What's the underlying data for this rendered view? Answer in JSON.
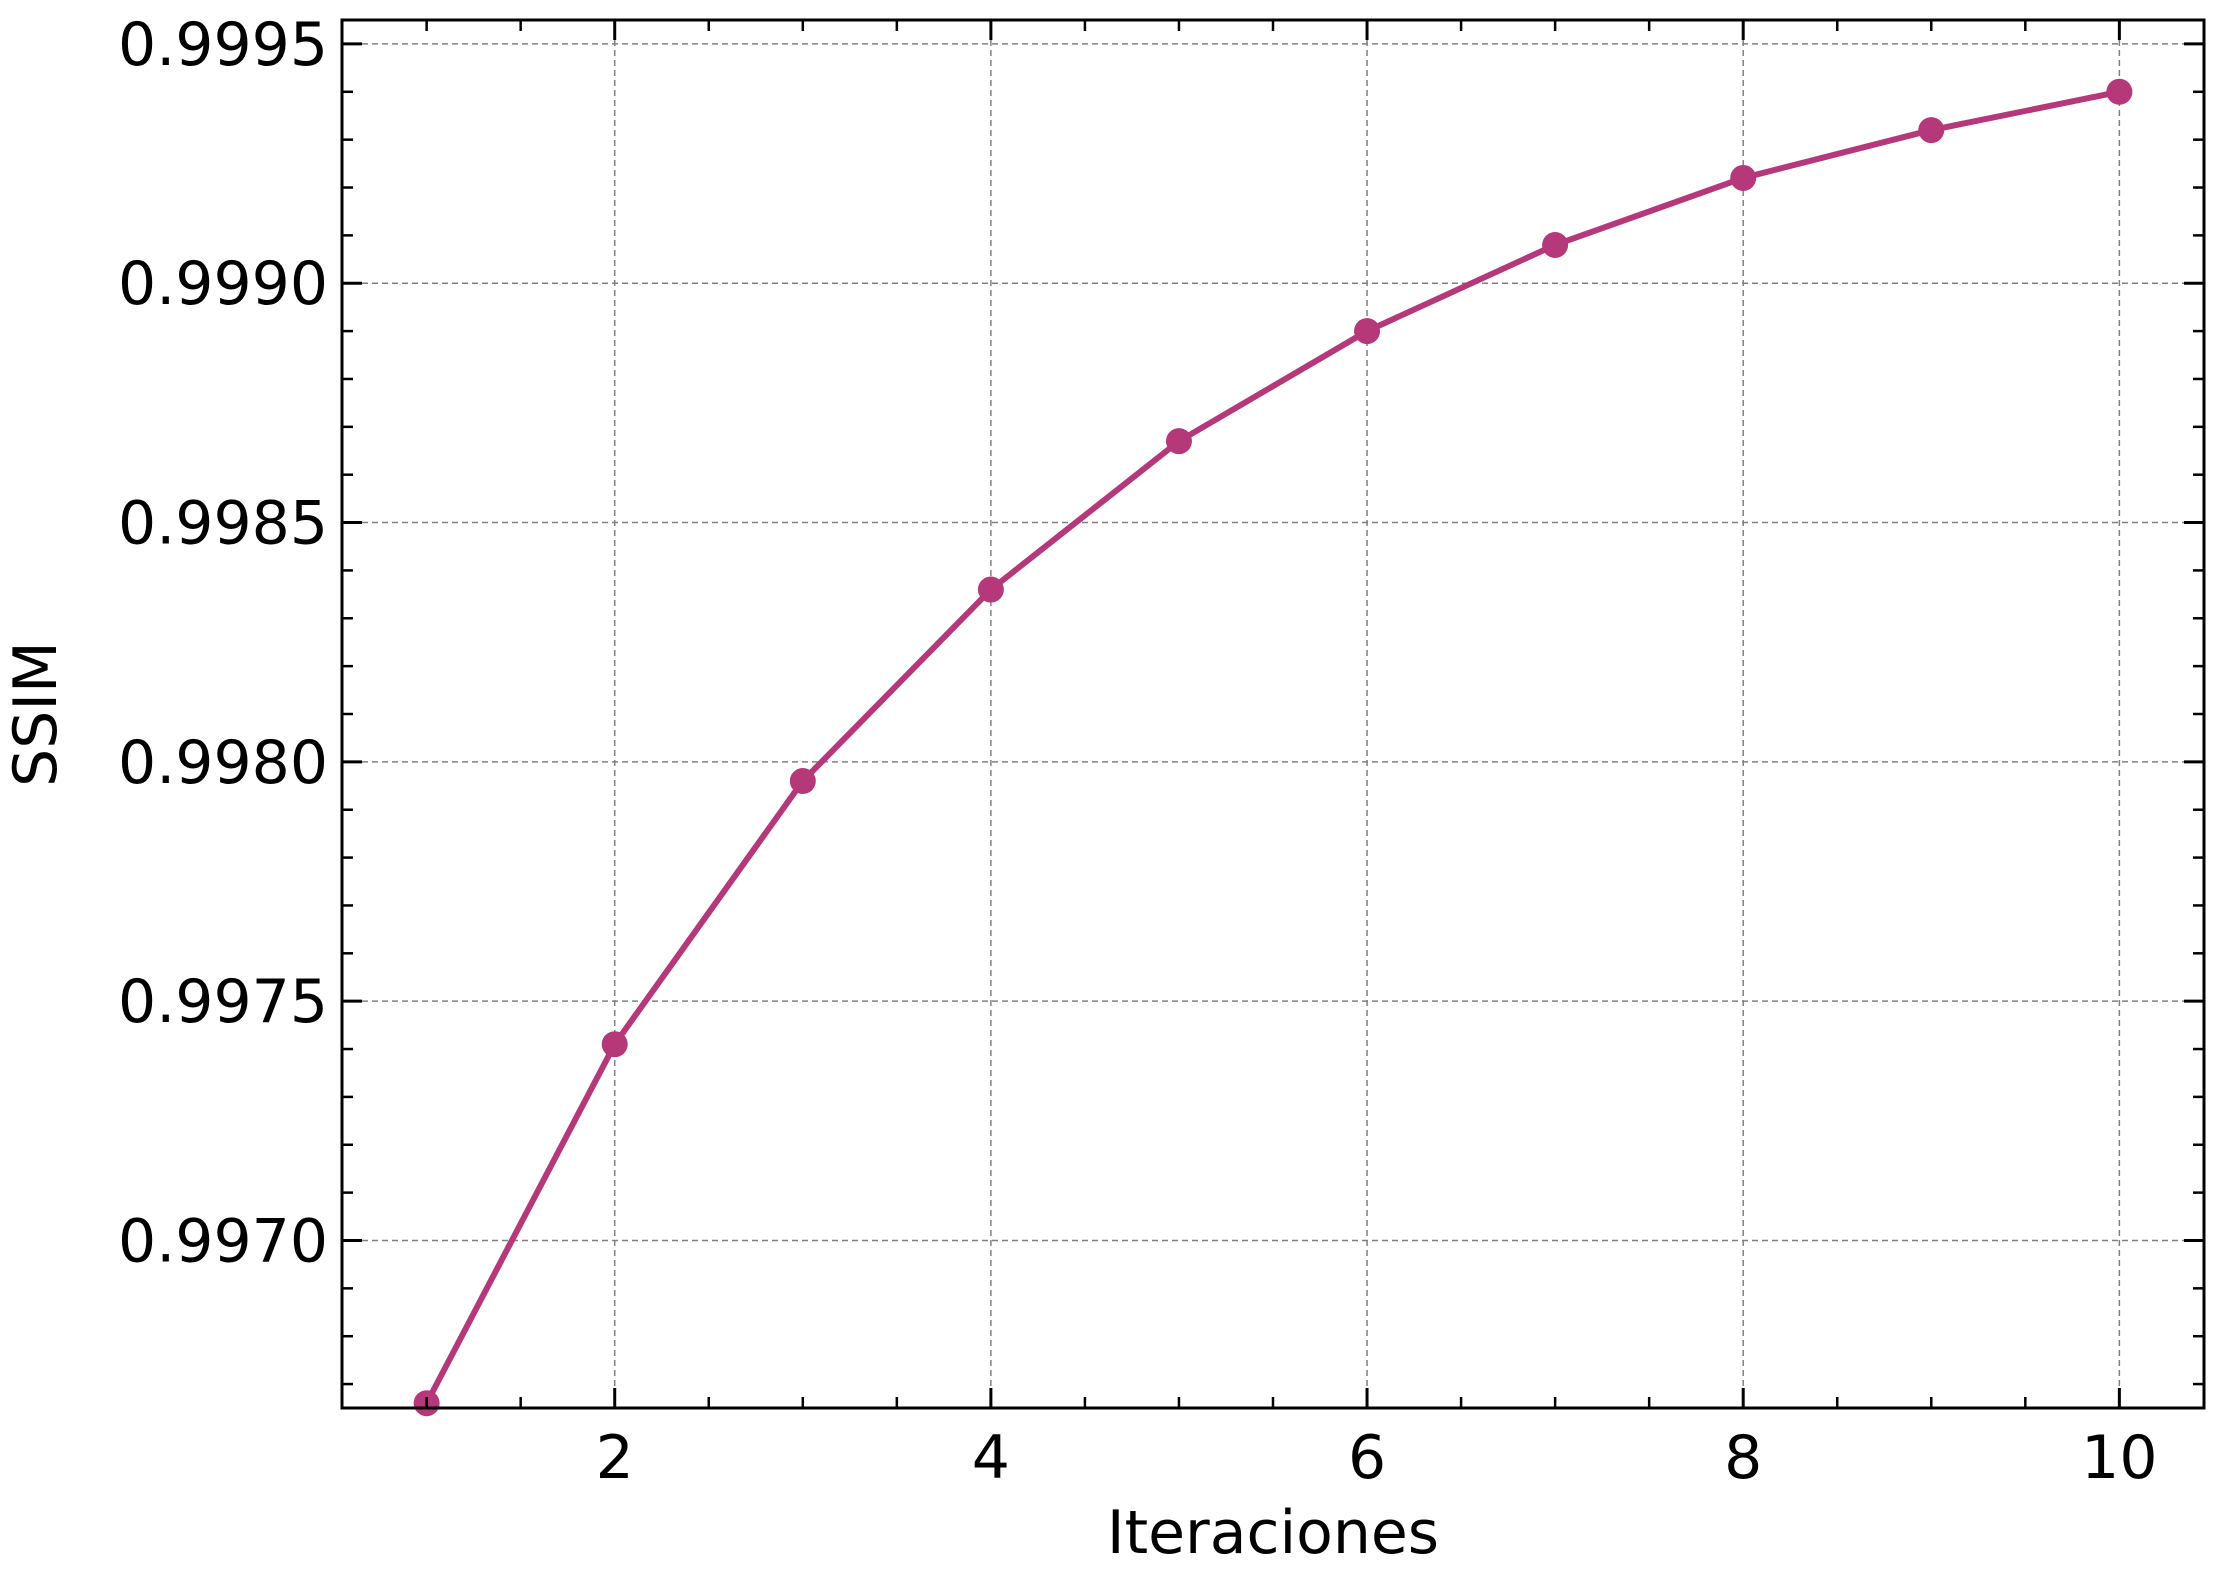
{
  "chart_data": {
    "type": "line",
    "title": "",
    "xlabel": "Iteraciones",
    "ylabel": "SSIM",
    "xlim": [
      0.55,
      10.45
    ],
    "ylim": [
      0.99665,
      0.99955
    ],
    "x_ticks": [
      2,
      4,
      6,
      8,
      10
    ],
    "x_tick_labels": [
      "2",
      "4",
      "6",
      "8",
      "10"
    ],
    "y_ticks": [
      0.997,
      0.9975,
      0.998,
      0.9985,
      0.999,
      0.9995
    ],
    "y_tick_labels": [
      "0.9970",
      "0.9975",
      "0.9980",
      "0.9985",
      "0.9990",
      "0.9995"
    ],
    "grid": true,
    "legend": "none",
    "series": [
      {
        "color": "#b5387a",
        "marker": "circle",
        "x": [
          1,
          2,
          3,
          4,
          5,
          6,
          7,
          8,
          9,
          10
        ],
        "values": [
          0.99666,
          0.99741,
          0.99796,
          0.99836,
          0.99867,
          0.9989,
          0.99908,
          0.99922,
          0.99932,
          0.9994
        ]
      }
    ]
  }
}
